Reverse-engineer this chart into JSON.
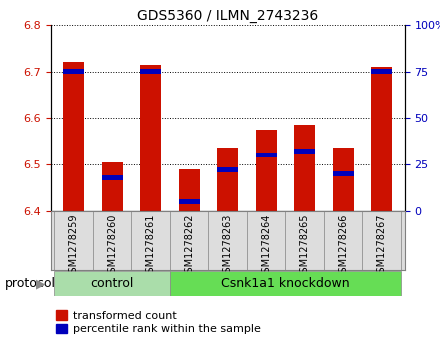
{
  "title": "GDS5360 / ILMN_2743236",
  "samples": [
    "GSM1278259",
    "GSM1278260",
    "GSM1278261",
    "GSM1278262",
    "GSM1278263",
    "GSM1278264",
    "GSM1278265",
    "GSM1278266",
    "GSM1278267"
  ],
  "transformed_counts": [
    6.72,
    6.505,
    6.715,
    6.49,
    6.535,
    6.575,
    6.585,
    6.535,
    6.71
  ],
  "percentile_ranks": [
    75,
    18,
    75,
    5,
    22,
    30,
    32,
    20,
    75
  ],
  "ylim_left": [
    6.4,
    6.8
  ],
  "ylim_right": [
    0,
    100
  ],
  "yticks_left": [
    6.4,
    6.5,
    6.6,
    6.7,
    6.8
  ],
  "yticks_right": [
    0,
    25,
    50,
    75,
    100
  ],
  "bar_width": 0.55,
  "bar_color_red": "#cc1100",
  "bar_color_blue": "#0000bb",
  "protocol_groups": [
    {
      "label": "control",
      "start": 0,
      "end": 2,
      "color": "#aaddaa"
    },
    {
      "label": "Csnk1a1 knockdown",
      "start": 3,
      "end": 8,
      "color": "#66dd55"
    }
  ],
  "protocol_label": "protocol",
  "legend_items": [
    {
      "label": "transformed count",
      "color": "#cc1100"
    },
    {
      "label": "percentile rank within the sample",
      "color": "#0000bb"
    }
  ],
  "background_color": "#ffffff",
  "tick_label_color_left": "#cc1100",
  "tick_label_color_right": "#0000bb",
  "bar_base": 6.4,
  "xticklabel_color": "#000000",
  "xticklabel_fontsize": 7,
  "ytick_fontsize": 8,
  "title_fontsize": 10,
  "protocol_fontsize": 9,
  "legend_fontsize": 8
}
